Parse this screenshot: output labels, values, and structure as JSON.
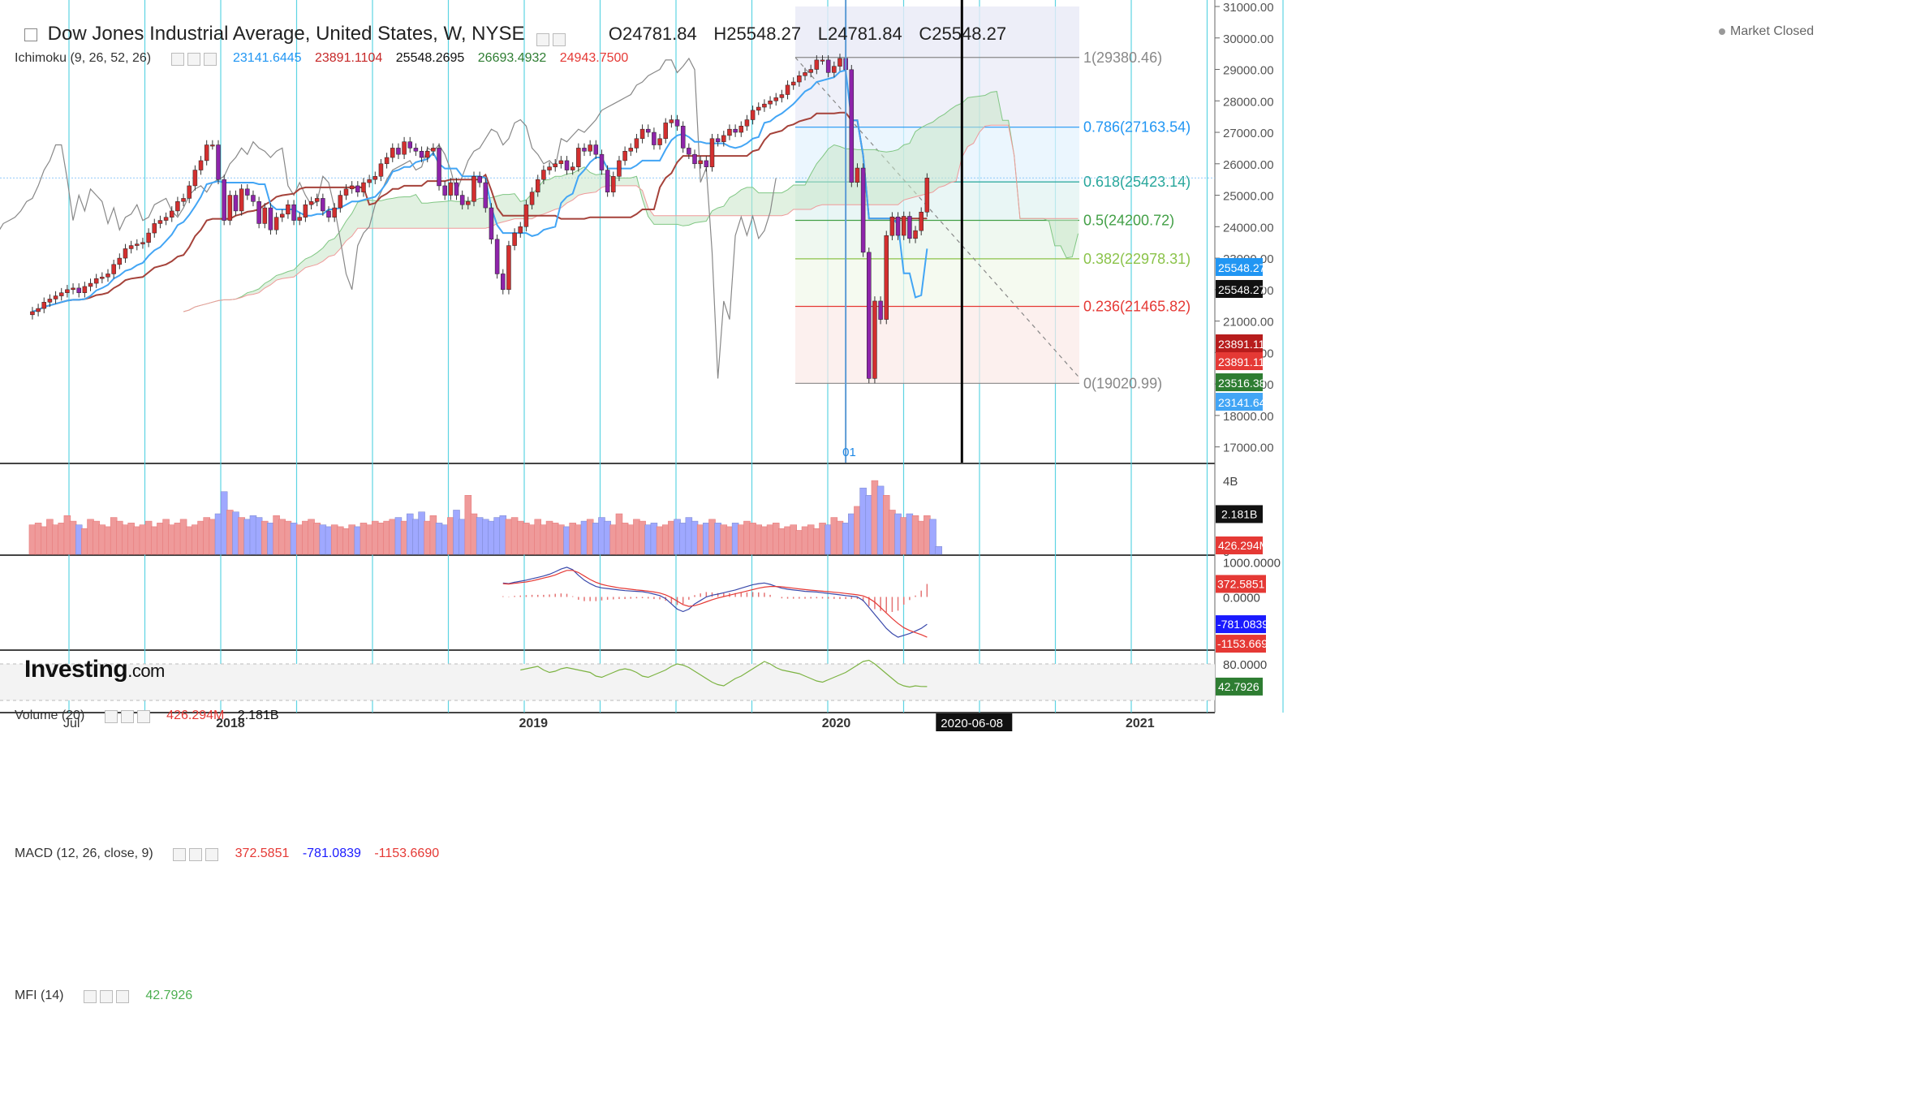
{
  "header": {
    "title": "Dow Jones Industrial Average, United States, W, NYSE",
    "open": "O24781.84",
    "high": "H25548.27",
    "low": "L24781.84",
    "close": "C25548.27",
    "market_status": "Market Closed",
    "brand": "Investing",
    "brand_suffix": ".com"
  },
  "indicators": {
    "ichimoku": {
      "label": "Ichimoku (9, 26, 52, 26)",
      "values": [
        "23141.6445",
        "23891.1104",
        "25548.2695",
        "26693.4932",
        "24943.7500"
      ],
      "colors": [
        "#2196f3",
        "#c62828",
        "#111111",
        "#2e7d32",
        "#e53935"
      ]
    },
    "volume": {
      "label": "Volume (20)",
      "values": [
        "426.294M",
        "2.181B"
      ],
      "colors": [
        "#e53935",
        "#111111"
      ]
    },
    "macd": {
      "label": "MACD (12, 26, close, 9)",
      "values": [
        "372.5851",
        "-781.0839",
        "-1153.6690"
      ],
      "colors": [
        "#e53935",
        "#1a1aff",
        "#e53935"
      ]
    },
    "mfi": {
      "label": "MFI (14)",
      "values": [
        "42.7926"
      ],
      "colors": [
        "#4caf50"
      ]
    }
  },
  "colors": {
    "up": "#d32f2f",
    "down": "#8e24aa",
    "tenkan": "#42a5f5",
    "kijun": "#a5423a",
    "chikou": "#888888",
    "cloud": "#2e7d32",
    "vline": "#4dd0e1",
    "vol_up": "#ef9a9a",
    "vol_down": "#9fa8ff"
  },
  "chart_data": [
    {
      "type": "candlestick",
      "title": "Dow Jones Industrial Average, United States, W, NYSE",
      "ylim": [
        16500,
        31000
      ],
      "y_ticks": [
        "31000.00",
        "30000.00",
        "29000.00",
        "28000.00",
        "27000.00",
        "26000.00",
        "25000.00",
        "24000.00",
        "23000.00",
        "22000.00",
        "21000.00",
        "20000.00",
        "19000.00",
        "18000.00",
        "17000.00"
      ],
      "x_ticks": [
        "Jul",
        "2018",
        "2019",
        "2020",
        "2020-06-08",
        "2021"
      ],
      "x_tick_dates": [
        "2017-07-01",
        "2018-01-01",
        "2019-01-01",
        "2020-01-01",
        "2020-06-08",
        "2021-01-01"
      ],
      "cursor_date": "2020-06-08",
      "marker_label": "01",
      "fibonacci": [
        {
          "level": "1(29380.46)",
          "value": 29380.46,
          "color": "#888888"
        },
        {
          "level": "0.786(27163.54)",
          "value": 27163.54,
          "color": "#2196f3"
        },
        {
          "level": "0.618(25423.14)",
          "value": 25423.14,
          "color": "#26a69a"
        },
        {
          "level": "0.5(24200.72)",
          "value": 24200.72,
          "color": "#43a047"
        },
        {
          "level": "0.382(22978.31)",
          "value": 22978.31,
          "color": "#8bc34a"
        },
        {
          "level": "0.236(21465.82)",
          "value": 21465.82,
          "color": "#e53935"
        },
        {
          "level": "0(19020.99)",
          "value": 19020.99,
          "color": "#888888"
        }
      ],
      "price_labels": [
        {
          "text": "25548.27",
          "value": 25548.27,
          "bg": "#2196f3"
        },
        {
          "text": "25548.27",
          "value": 25548.27,
          "bg": "#111111"
        },
        {
          "text": "23891.11",
          "value": 23891.11,
          "bg": "#b71c1c"
        },
        {
          "text": "23891.11",
          "value": 23891.11,
          "bg": "#e53935"
        },
        {
          "text": "23516.38",
          "value": 23516.38,
          "bg": "#2e7d32"
        },
        {
          "text": "23141.64",
          "value": 23141.64,
          "bg": "#42a5f5"
        }
      ],
      "series": [
        {
          "name": "Close",
          "values": [
            21300,
            21400,
            21600,
            21700,
            21800,
            21900,
            22000,
            22050,
            21900,
            22100,
            22200,
            22350,
            22400,
            22500,
            22800,
            23000,
            23300,
            23400,
            23450,
            23500,
            23800,
            24100,
            24200,
            24300,
            24500,
            24800,
            24900,
            25300,
            25800,
            26100,
            26600,
            26600,
            25500,
            24200,
            25000,
            24500,
            25200,
            25000,
            24800,
            24100,
            24600,
            23900,
            24300,
            24400,
            24700,
            24200,
            24300,
            24700,
            24800,
            24900,
            24500,
            24300,
            24600,
            25000,
            25200,
            25300,
            25100,
            25400,
            25500,
            25600,
            26000,
            26200,
            26500,
            26300,
            26700,
            26500,
            26400,
            26200,
            26400,
            26500,
            25300,
            25000,
            25400,
            25000,
            24700,
            24800,
            25600,
            25400,
            24600,
            23600,
            22500,
            22000,
            23400,
            23800,
            24000,
            24700,
            25100,
            25500,
            25800,
            25900,
            26000,
            26100,
            25800,
            25900,
            26500,
            26400,
            26600,
            26300,
            25800,
            25100,
            25600,
            26100,
            26400,
            26500,
            26800,
            27100,
            27000,
            26600,
            26800,
            27300,
            27400,
            27200,
            26500,
            26300,
            26000,
            26100,
            25900,
            26800,
            26700,
            26900,
            27100,
            27000,
            27200,
            27400,
            27700,
            27800,
            27900,
            28000,
            28100,
            28200,
            28500,
            28600,
            28800,
            28900,
            29000,
            29300,
            29300,
            28900,
            29100,
            29350,
            28992,
            25409,
            25865,
            23186,
            19174,
            21636,
            21052,
            23719,
            24312,
            23723,
            24331,
            23626,
            23875,
            24465,
            25548
          ]
        }
      ]
    },
    {
      "type": "bar",
      "title": "Volume (20)",
      "y_ticks": [
        "4B",
        "0"
      ],
      "ylim": [
        0,
        4400000000
      ],
      "series": [
        {
          "name": "Volume",
          "values": [
            1600000000.0,
            1700000000.0,
            1500000000.0,
            1900000000.0,
            1600000000.0,
            1700000000.0,
            2100000000.0,
            1800000000.0,
            1600000000.0,
            1400000000.0,
            1900000000.0,
            1800000000.0,
            1600000000.0,
            1500000000.0,
            2000000000.0,
            1800000000.0,
            1600000000.0,
            1700000000.0,
            1500000000.0,
            1600000000.0,
            1800000000.0,
            1500000000.0,
            1700000000.0,
            1900000000.0,
            1600000000.0,
            1700000000.0,
            1900000000.0,
            1500000000.0,
            1600000000.0,
            1800000000.0,
            2000000000.0,
            1900000000.0,
            2200000000.0,
            3400000000.0,
            2400000000.0,
            2300000000.0,
            2000000000.0,
            1900000000.0,
            2100000000.0,
            2000000000.0,
            1800000000.0,
            1700000000.0,
            2100000000.0,
            1900000000.0,
            1800000000.0,
            1700000000.0,
            1600000000.0,
            1800000000.0,
            1900000000.0,
            1700000000.0,
            1600000000.0,
            1500000000.0,
            1600000000.0,
            1500000000.0,
            1400000000.0,
            1600000000.0,
            1500000000.0,
            1700000000.0,
            1600000000.0,
            1800000000.0,
            1700000000.0,
            1800000000.0,
            1900000000.0,
            2000000000.0,
            1800000000.0,
            2200000000.0,
            1900000000.0,
            2300000000.0,
            1800000000.0,
            2100000000.0,
            1700000000.0,
            1600000000.0,
            2000000000.0,
            2400000000.0,
            1900000000.0,
            3200000000.0,
            2200000000.0,
            2000000000.0,
            1900000000.0,
            1800000000.0,
            2000000000.0,
            2100000000.0,
            1900000000.0,
            2000000000.0,
            1800000000.0,
            1700000000.0,
            1600000000.0,
            1900000000.0,
            1600000000.0,
            1800000000.0,
            1700000000.0,
            1600000000.0,
            1500000000.0,
            1700000000.0,
            1600000000.0,
            1800000000.0,
            1900000000.0,
            1700000000.0,
            2000000000.0,
            1800000000.0,
            1600000000.0,
            2200000000.0,
            1700000000.0,
            1600000000.0,
            1900000000.0,
            1800000000.0,
            1600000000.0,
            1700000000.0,
            1500000000.0,
            1600000000.0,
            1800000000.0,
            1900000000.0,
            1700000000.0,
            2000000000.0,
            1800000000.0,
            1600000000.0,
            1700000000.0,
            1900000000.0,
            1700000000.0,
            1600000000.0,
            1500000000.0,
            1700000000.0,
            1600000000.0,
            1800000000.0,
            1700000000.0,
            1600000000.0,
            1500000000.0,
            1600000000.0,
            1700000000.0,
            1400000000.0,
            1500000000.0,
            1600000000.0,
            1300000000.0,
            1500000000.0,
            1600000000.0,
            1400000000.0,
            1700000000.0,
            1600000000.0,
            2000000000.0,
            1800000000.0,
            1700000000.0,
            2200000000.0,
            2600000000.0,
            3600000000.0,
            3200000000.0,
            4000000000.0,
            3700000000.0,
            3200000000.0,
            2400000000.0,
            2200000000.0,
            2000000000.0,
            2200000000.0,
            2100000000.0,
            1800000000.0,
            2100000000.0,
            1900000000.0,
            426294000.0
          ]
        }
      ]
    },
    {
      "type": "line",
      "title": "MACD (12, 26, close, 9)",
      "y_ticks": [
        "1000.0000",
        "0.0000"
      ],
      "ylim": [
        -1500,
        1150
      ],
      "series": [
        {
          "name": "MACD",
          "values": [
            400,
            380,
            420,
            450,
            480,
            520,
            560,
            600,
            650,
            720,
            800,
            850,
            780,
            620,
            480,
            380,
            300,
            260,
            240,
            220,
            200,
            180,
            170,
            160,
            150,
            120,
            80,
            40,
            -50,
            -200,
            -350,
            -420,
            -350,
            -200,
            -100,
            0,
            50,
            80,
            120,
            160,
            200,
            250,
            300,
            350,
            380,
            400,
            360,
            300,
            250,
            220,
            200,
            180,
            160,
            150,
            140,
            120,
            100,
            80,
            60,
            40,
            20,
            0,
            -100,
            -300,
            -500,
            -700,
            -900,
            -1050,
            -1153,
            -1100,
            -1050,
            -980,
            -900,
            -781
          ]
        },
        {
          "name": "Signal",
          "values": [
            380,
            370,
            390,
            410,
            430,
            460,
            500,
            540,
            580,
            630,
            700,
            760,
            760,
            700,
            600,
            500,
            420,
            360,
            320,
            290,
            260,
            240,
            220,
            200,
            185,
            165,
            140,
            110,
            60,
            -20,
            -120,
            -220,
            -270,
            -250,
            -200,
            -140,
            -80,
            -30,
            10,
            50,
            90,
            130,
            170,
            210,
            250,
            280,
            300,
            300,
            290,
            270,
            250,
            230,
            210,
            195,
            180,
            165,
            150,
            135,
            120,
            100,
            80,
            60,
            30,
            -40,
            -150,
            -300,
            -460,
            -620,
            -760,
            -880,
            -960,
            -1020,
            -1080,
            -1153
          ]
        }
      ]
    },
    {
      "type": "line",
      "title": "MFI (14)",
      "y_ticks": [
        "80.0000"
      ],
      "ylim": [
        0,
        100
      ],
      "series": [
        {
          "name": "MFI",
          "values": [
            70,
            72,
            74,
            76,
            70,
            66,
            68,
            72,
            74,
            72,
            70,
            68,
            66,
            60,
            58,
            62,
            66,
            70,
            72,
            70,
            66,
            60,
            58,
            62,
            66,
            70,
            76,
            80,
            78,
            74,
            68,
            62,
            56,
            50,
            46,
            44,
            50,
            56,
            60,
            66,
            72,
            78,
            84,
            80,
            74,
            70,
            68,
            66,
            64,
            60,
            56,
            52,
            50,
            54,
            58,
            62,
            66,
            72,
            78,
            84,
            86,
            80,
            72,
            64,
            56,
            48,
            44,
            42,
            44,
            43,
            42.79
          ]
        }
      ]
    }
  ]
}
